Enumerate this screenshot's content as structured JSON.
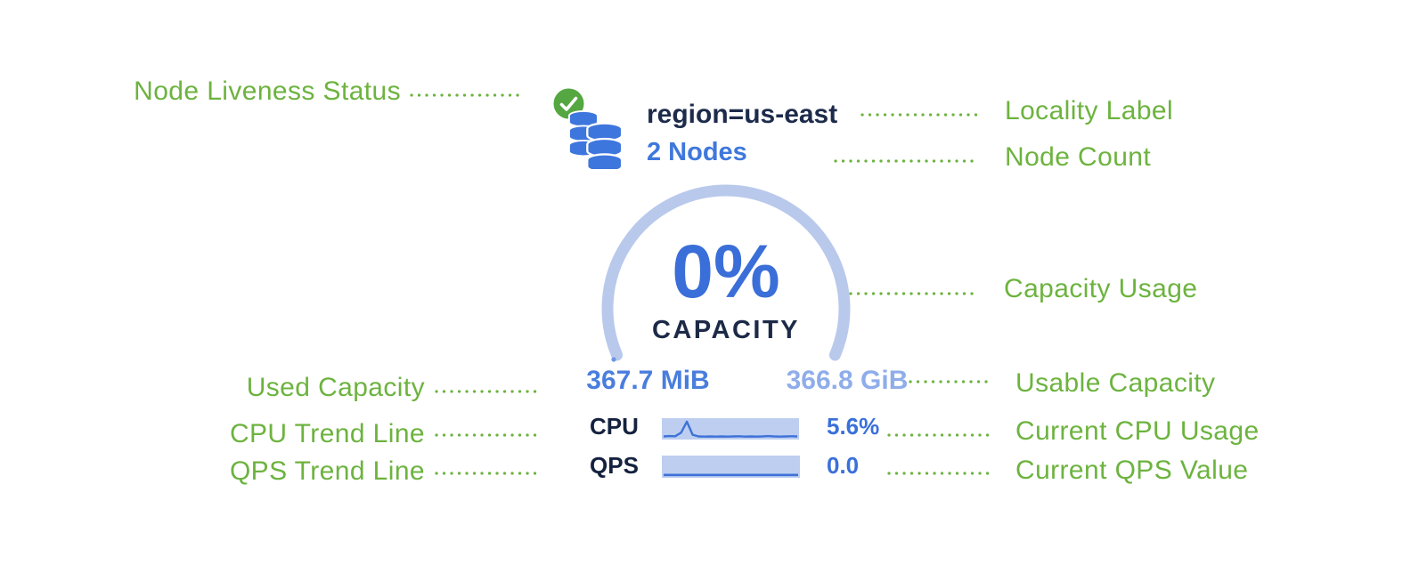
{
  "annotations": {
    "color": "#6db33f",
    "left": [
      {
        "label": "Node Liveness Status"
      },
      {
        "label": "Used Capacity"
      },
      {
        "label": "CPU Trend Line"
      },
      {
        "label": "QPS Trend Line"
      }
    ],
    "right": [
      {
        "label": "Locality Label"
      },
      {
        "label": "Node Count"
      },
      {
        "label": "Capacity Usage"
      },
      {
        "label": "Usable Capacity"
      },
      {
        "label": "Current CPU Usage"
      },
      {
        "label": "Current QPS Value"
      }
    ]
  },
  "node_card": {
    "liveness_icon": "green-checkmark-circle",
    "database_icon": "stacked-database-cylinders",
    "locality_label": "region=us-east",
    "node_count": "2 Nodes",
    "gauge": {
      "percent": "0%",
      "caption": "CAPACITY",
      "used_capacity": "367.7 MiB",
      "usable_capacity": "366.8 GiB"
    },
    "cpu": {
      "label": "CPU",
      "value": "5.6%",
      "trend": [
        0.08,
        0.1,
        0.09,
        0.3,
        0.95,
        0.18,
        0.08,
        0.07,
        0.08,
        0.07,
        0.08,
        0.07,
        0.08,
        0.09,
        0.07,
        0.08,
        0.07,
        0.08,
        0.1,
        0.08,
        0.07,
        0.08,
        0.09,
        0.08
      ]
    },
    "qps": {
      "label": "QPS",
      "value": "0.0",
      "trend": [
        0.06,
        0.06,
        0.06,
        0.06,
        0.06,
        0.06,
        0.06,
        0.06,
        0.06,
        0.06,
        0.06,
        0.06,
        0.06,
        0.06,
        0.06,
        0.06,
        0.06,
        0.06,
        0.06,
        0.06,
        0.06,
        0.06,
        0.06,
        0.06
      ]
    },
    "colors": {
      "annotation_green": "#6db33f",
      "liveness_green": "#55a741",
      "db_blue": "#3d76dd",
      "dark_navy": "#1d2b4b",
      "accent_blue": "#3a70d8",
      "arc_light_blue": "#b9c9ec",
      "used_value_blue": "#4a7edd",
      "usable_value_blue": "#8fadea",
      "spark_fill": "#bdcef0",
      "spark_line": "#3f72d8"
    }
  }
}
